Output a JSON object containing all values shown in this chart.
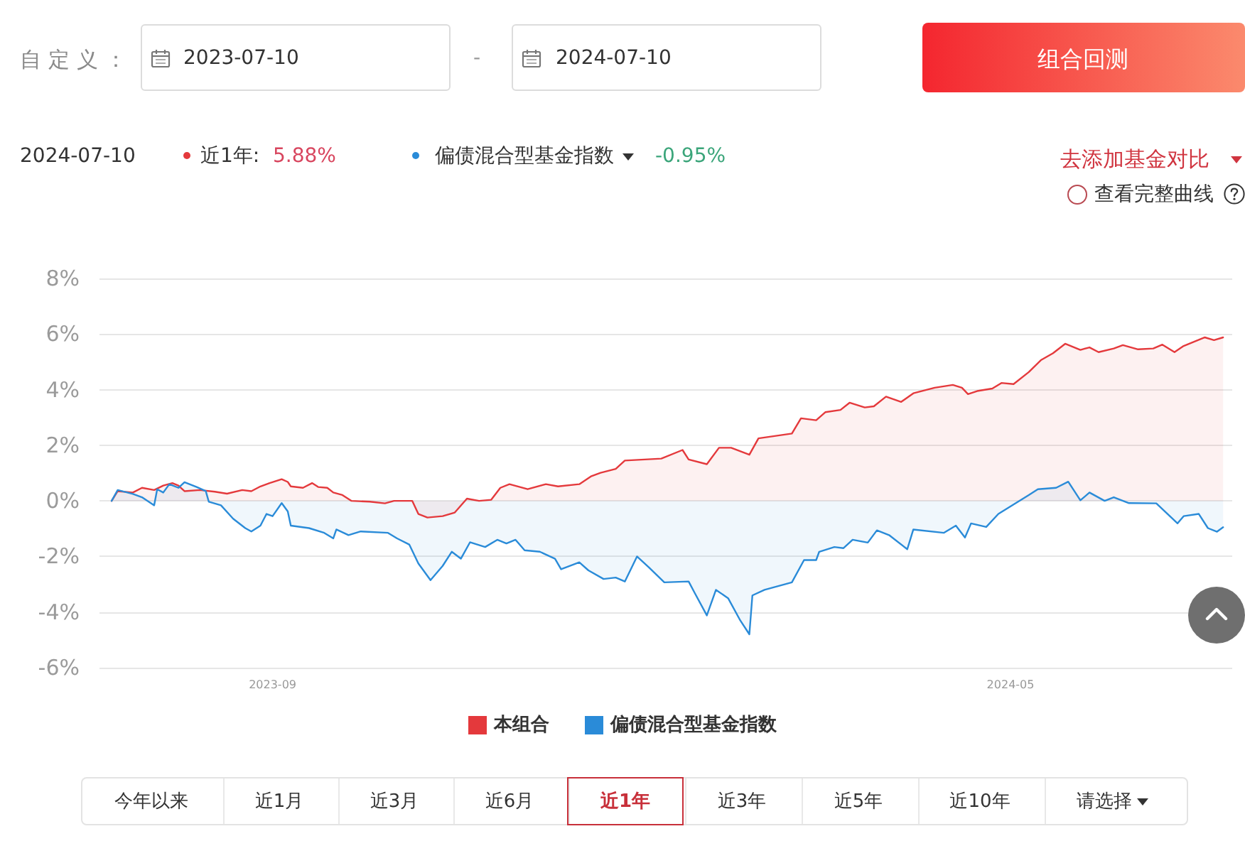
{
  "chart_data": {
    "type": "area",
    "series": [
      {
        "name": "本组合",
        "color": "#e4393c",
        "x": [
          "2023-07-10",
          "2023-07-12",
          "2023-07-17",
          "2023-07-20",
          "2023-07-24",
          "2023-07-27",
          "2023-07-30",
          "2023-08-01",
          "2023-08-03",
          "2023-08-08",
          "2023-08-13",
          "2023-08-17",
          "2023-08-22",
          "2023-08-25",
          "2023-08-28",
          "2023-08-31",
          "2023-09-04",
          "2023-09-06",
          "2023-09-07",
          "2023-09-11",
          "2023-09-14",
          "2023-09-16",
          "2023-09-19",
          "2023-09-21",
          "2023-09-24",
          "2023-09-27",
          "2023-10-03",
          "2023-10-08",
          "2023-10-11",
          "2023-10-17",
          "2023-10-19",
          "2023-10-22",
          "2023-10-27",
          "2023-10-31",
          "2023-11-04",
          "2023-11-08",
          "2023-11-12",
          "2023-11-15",
          "2023-11-18",
          "2023-11-24",
          "2023-11-30",
          "2023-12-04",
          "2023-12-11",
          "2023-12-15",
          "2023-12-18",
          "2023-12-23",
          "2023-12-26",
          "2024-01-07",
          "2024-01-14",
          "2024-01-16",
          "2024-01-22",
          "2024-01-26",
          "2024-01-30",
          "2024-02-05",
          "2024-02-08",
          "2024-02-19",
          "2024-02-22",
          "2024-02-27",
          "2024-03-01",
          "2024-03-06",
          "2024-03-09",
          "2024-03-14",
          "2024-03-17",
          "2024-03-21",
          "2024-03-26",
          "2024-03-30",
          "2024-04-06",
          "2024-04-12",
          "2024-04-15",
          "2024-04-17",
          "2024-04-20",
          "2024-04-25",
          "2024-04-28",
          "2024-05-02",
          "2024-05-07",
          "2024-05-11",
          "2024-05-15",
          "2024-05-19",
          "2024-05-24",
          "2024-05-27",
          "2024-05-30",
          "2024-06-04",
          "2024-06-07",
          "2024-06-12",
          "2024-06-17",
          "2024-06-20",
          "2024-06-24",
          "2024-06-27",
          "2024-07-04",
          "2024-07-07",
          "2024-07-10"
        ],
        "values": [
          0,
          0.35,
          0.3,
          0.47,
          0.39,
          0.55,
          0.64,
          0.55,
          0.35,
          0.39,
          0.33,
          0.26,
          0.39,
          0.35,
          0.52,
          0.64,
          0.78,
          0.68,
          0.52,
          0.47,
          0.64,
          0.5,
          0.47,
          0.3,
          0.21,
          0,
          -0.03,
          -0.09,
          0,
          0,
          -0.47,
          -0.6,
          -0.55,
          -0.42,
          0.08,
          0,
          0.04,
          0.47,
          0.6,
          0.42,
          0.6,
          0.52,
          0.6,
          0.89,
          1.01,
          1.15,
          1.45,
          1.52,
          1.83,
          1.49,
          1.32,
          1.91,
          1.91,
          1.66,
          2.25,
          2.42,
          2.97,
          2.9,
          3.19,
          3.27,
          3.53,
          3.36,
          3.4,
          3.75,
          3.56,
          3.87,
          4.07,
          4.17,
          4.07,
          3.84,
          3.95,
          4.04,
          4.24,
          4.2,
          4.63,
          5.06,
          5.31,
          5.65,
          5.43,
          5.52,
          5.35,
          5.48,
          5.6,
          5.45,
          5.48,
          5.62,
          5.35,
          5.57,
          5.88,
          5.78,
          5.88
        ]
      },
      {
        "name": "偏债混合型基金指数",
        "color": "#2a8bd8",
        "x": [
          "2023-07-10",
          "2023-07-12",
          "2023-07-17",
          "2023-07-20",
          "2023-07-24",
          "2023-07-25",
          "2023-07-27",
          "2023-07-29",
          "2023-08-01",
          "2023-08-03",
          "2023-08-07",
          "2023-08-10",
          "2023-08-11",
          "2023-08-15",
          "2023-08-19",
          "2023-08-23",
          "2023-08-25",
          "2023-08-28",
          "2023-08-30",
          "2023-09-01",
          "2023-09-04",
          "2023-09-06",
          "2023-09-07",
          "2023-09-13",
          "2023-09-18",
          "2023-09-21",
          "2023-09-22",
          "2023-09-26",
          "2023-09-30",
          "2023-10-09",
          "2023-10-12",
          "2023-10-16",
          "2023-10-19",
          "2023-10-23",
          "2023-10-27",
          "2023-10-30",
          "2023-11-02",
          "2023-11-05",
          "2023-11-10",
          "2023-11-14",
          "2023-11-17",
          "2023-11-20",
          "2023-11-23",
          "2023-11-28",
          "2023-12-03",
          "2023-12-05",
          "2023-12-11",
          "2023-12-14",
          "2023-12-19",
          "2023-12-23",
          "2023-12-26",
          "2023-12-30",
          "2024-01-03",
          "2024-01-08",
          "2024-01-16",
          "2024-01-18",
          "2024-01-22",
          "2024-01-25",
          "2024-01-29",
          "2024-02-02",
          "2024-02-05",
          "2024-02-06",
          "2024-02-10",
          "2024-02-19",
          "2024-02-23",
          "2024-02-27",
          "2024-02-28",
          "2024-03-04",
          "2024-03-07",
          "2024-03-10",
          "2024-03-15",
          "2024-03-18",
          "2024-03-22",
          "2024-03-28",
          "2024-03-30",
          "2024-04-09",
          "2024-04-13",
          "2024-04-16",
          "2024-04-18",
          "2024-04-23",
          "2024-04-27",
          "2024-05-02",
          "2024-05-07",
          "2024-05-10",
          "2024-05-16",
          "2024-05-20",
          "2024-05-24",
          "2024-05-27",
          "2024-06-01",
          "2024-06-04",
          "2024-06-09",
          "2024-06-18",
          "2024-06-25",
          "2024-06-27",
          "2024-07-02",
          "2024-07-05",
          "2024-07-08",
          "2024-07-10"
        ],
        "values": [
          0,
          0.39,
          0.25,
          0.13,
          -0.16,
          0.42,
          0.3,
          0.6,
          0.47,
          0.67,
          0.5,
          0.35,
          -0.03,
          -0.16,
          -0.64,
          -0.98,
          -1.1,
          -0.89,
          -0.47,
          -0.55,
          -0.08,
          -0.38,
          -0.89,
          -0.98,
          -1.15,
          -1.35,
          -1.03,
          -1.23,
          -1.1,
          -1.15,
          -1.35,
          -1.57,
          -2.25,
          -2.85,
          -2.34,
          -1.83,
          -2.08,
          -1.49,
          -1.66,
          -1.4,
          -1.53,
          -1.4,
          -1.78,
          -1.83,
          -2.08,
          -2.46,
          -2.21,
          -2.5,
          -2.81,
          -2.76,
          -2.9,
          -2.0,
          -2.4,
          -2.93,
          -2.9,
          -3.31,
          -4.12,
          -3.2,
          -3.5,
          -4.3,
          -4.8,
          -3.4,
          -3.2,
          -2.93,
          -2.13,
          -2.13,
          -1.83,
          -1.66,
          -1.7,
          -1.4,
          -1.5,
          -1.06,
          -1.23,
          -1.74,
          -1.03,
          -1.15,
          -0.89,
          -1.32,
          -0.81,
          -0.94,
          -0.47,
          -0.13,
          0.21,
          0.42,
          0.47,
          0.69,
          0.02,
          0.3,
          0,
          0.13,
          -0.08,
          -0.09,
          -0.81,
          -0.55,
          -0.47,
          -0.98,
          -1.11,
          -0.95
        ]
      }
    ],
    "xlim": [
      "2023-07-06",
      "2024-07-13"
    ],
    "xticks": [
      "2023-09",
      "2024-05"
    ],
    "ylim": [
      -6,
      8
    ],
    "yticks": [
      {
        "value": -6,
        "label": "-6%"
      },
      {
        "value": -4,
        "label": "-4%"
      },
      {
        "value": -2,
        "label": "-2%"
      },
      {
        "value": 0,
        "label": "0%"
      },
      {
        "value": 2,
        "label": "2%"
      },
      {
        "value": 4,
        "label": "4%"
      },
      {
        "value": 6,
        "label": "6%"
      },
      {
        "value": 8,
        "label": "8%"
      }
    ],
    "grid": "y",
    "legend": "bottom",
    "annotations": [
      "自定义：",
      "2023-07-10",
      "-",
      "2024-07-10",
      "组合回测",
      "2024-07-10",
      "近1年:",
      "5.88%",
      "偏债混合型基金指数",
      "-0.95%",
      "去添加基金对比",
      "查看完整曲线",
      "今年以来",
      "近1月",
      "近3月",
      "近6月",
      "近1年",
      "近3年",
      "近5年",
      "近10年",
      "请选择"
    ]
  }
}
